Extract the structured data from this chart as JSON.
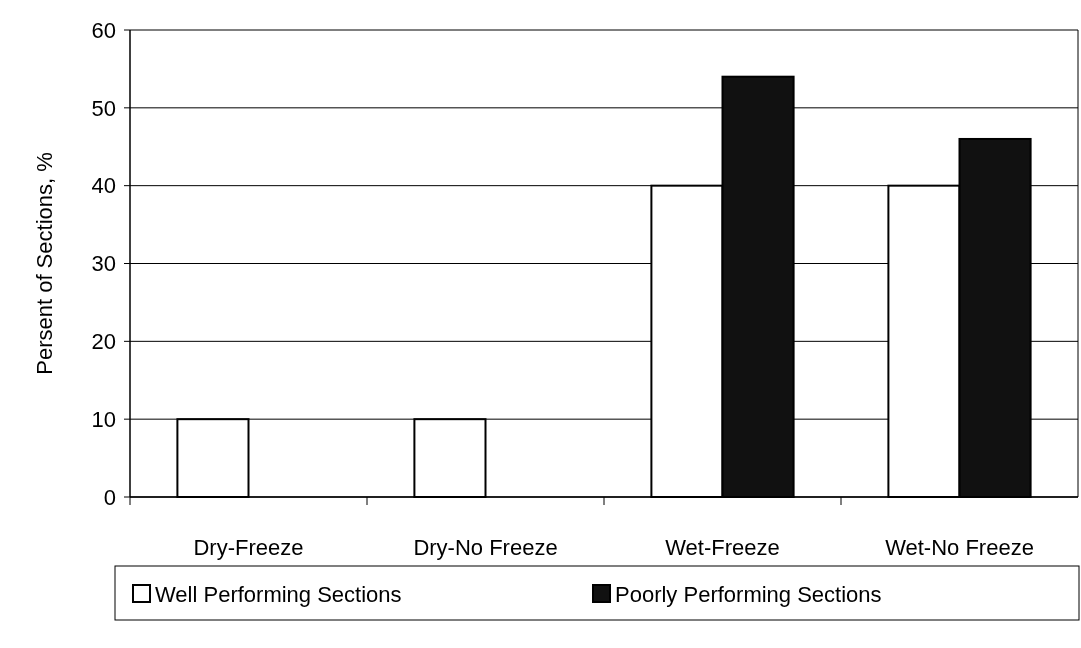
{
  "chart_data": {
    "type": "bar",
    "ylabel": "Persent of Sections, %",
    "categories": [
      "Dry-Freeze",
      "Dry-No Freeze",
      "Wet-Freeze",
      "Wet-No Freeze"
    ],
    "series": [
      {
        "name": "Well Performing Sections",
        "color": "#ffffff",
        "values": [
          10,
          10,
          40,
          40
        ]
      },
      {
        "name": "Poorly Performing Sections",
        "color": "#111111",
        "values": [
          0,
          0,
          54,
          46
        ]
      }
    ],
    "ylim": [
      0,
      60
    ],
    "yticks": [
      0,
      10,
      20,
      30,
      40,
      50,
      60
    ],
    "grid": "y",
    "legend": "bottom"
  }
}
